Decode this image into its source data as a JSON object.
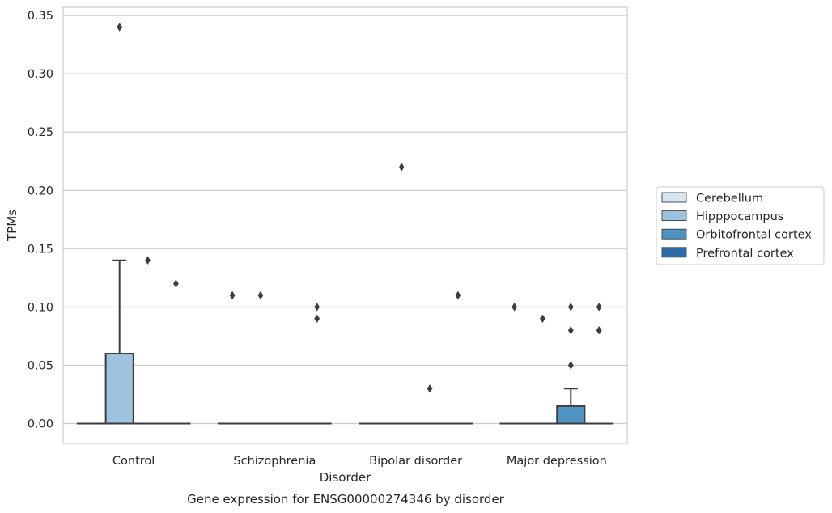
{
  "chart_data": {
    "type": "box",
    "caption": "Gene expression for ENSG00000274346 by disorder",
    "xlabel": "Disorder",
    "ylabel": "TPMs",
    "categories": [
      "Control",
      "Schizophrenia",
      "Bipolar disorder",
      "Major depression"
    ],
    "ylim": [
      -0.017,
      0.357
    ],
    "yticks": [
      0.0,
      0.05,
      0.1,
      0.15,
      0.2,
      0.25,
      0.3,
      0.35
    ],
    "ytick_labels": [
      "0.00",
      "0.05",
      "0.10",
      "0.15",
      "0.20",
      "0.25",
      "0.30",
      "0.35"
    ],
    "grid": true,
    "legend_position": "right",
    "series": [
      {
        "name": "Cerebellum",
        "color": "#d6e3f1",
        "boxes": [
          {
            "q1": 0,
            "median": 0,
            "q3": 0,
            "whisker_low": 0,
            "whisker_high": 0,
            "outliers": []
          },
          {
            "q1": 0,
            "median": 0,
            "q3": 0,
            "whisker_low": 0,
            "whisker_high": 0,
            "outliers": [
              0.11
            ]
          },
          {
            "q1": 0,
            "median": 0,
            "q3": 0,
            "whisker_low": 0,
            "whisker_high": 0,
            "outliers": []
          },
          {
            "q1": 0,
            "median": 0,
            "q3": 0,
            "whisker_low": 0,
            "whisker_high": 0,
            "outliers": [
              0.1
            ]
          }
        ]
      },
      {
        "name": "Hipppocampus",
        "color": "#9dc3de",
        "boxes": [
          {
            "q1": 0,
            "median": 0,
            "q3": 0.06,
            "whisker_low": 0,
            "whisker_high": 0.14,
            "outliers": [
              0.34
            ]
          },
          {
            "q1": 0,
            "median": 0,
            "q3": 0,
            "whisker_low": 0,
            "whisker_high": 0,
            "outliers": [
              0.11
            ]
          },
          {
            "q1": 0,
            "median": 0,
            "q3": 0,
            "whisker_low": 0,
            "whisker_high": 0,
            "outliers": [
              0.22
            ]
          },
          {
            "q1": 0,
            "median": 0,
            "q3": 0,
            "whisker_low": 0,
            "whisker_high": 0,
            "outliers": [
              0.09
            ]
          }
        ]
      },
      {
        "name": "Orbitofrontal cortex",
        "color": "#4f93c3",
        "boxes": [
          {
            "q1": 0,
            "median": 0,
            "q3": 0,
            "whisker_low": 0,
            "whisker_high": 0,
            "outliers": [
              0.14
            ]
          },
          {
            "q1": 0,
            "median": 0,
            "q3": 0,
            "whisker_low": 0,
            "whisker_high": 0,
            "outliers": []
          },
          {
            "q1": 0,
            "median": 0,
            "q3": 0,
            "whisker_low": 0,
            "whisker_high": 0,
            "outliers": [
              0.03
            ]
          },
          {
            "q1": 0,
            "median": 0,
            "q3": 0.015,
            "whisker_low": 0,
            "whisker_high": 0.03,
            "outliers": [
              0.1,
              0.08,
              0.05
            ]
          }
        ]
      },
      {
        "name": "Prefrontal cortex",
        "color": "#2c6aa8",
        "boxes": [
          {
            "q1": 0,
            "median": 0,
            "q3": 0,
            "whisker_low": 0,
            "whisker_high": 0,
            "outliers": [
              0.12
            ]
          },
          {
            "q1": 0,
            "median": 0,
            "q3": 0,
            "whisker_low": 0,
            "whisker_high": 0,
            "outliers": [
              0.1,
              0.09
            ]
          },
          {
            "q1": 0,
            "median": 0,
            "q3": 0,
            "whisker_low": 0,
            "whisker_high": 0,
            "outliers": [
              0.11
            ]
          },
          {
            "q1": 0,
            "median": 0,
            "q3": 0,
            "whisker_low": 0,
            "whisker_high": 0,
            "outliers": [
              0.1,
              0.08
            ]
          }
        ]
      }
    ]
  }
}
